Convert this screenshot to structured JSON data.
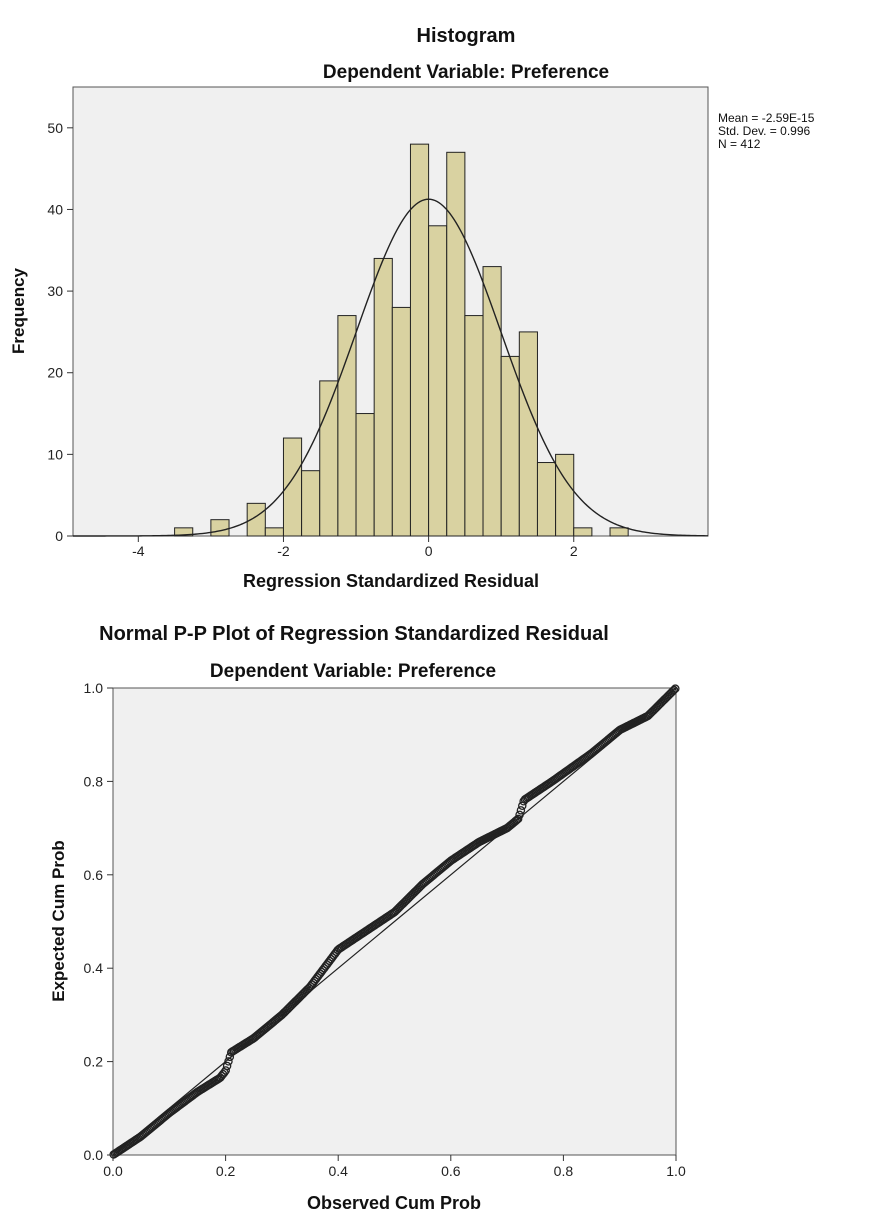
{
  "chart_data": [
    {
      "type": "bar",
      "title": "Histogram",
      "subtitle": "Dependent Variable: Preference",
      "xlabel": "Regression Standardized Residual",
      "ylabel": "Frequency",
      "xlim": [
        -4.9,
        3.85
      ],
      "ylim": [
        0,
        55
      ],
      "x_ticks": [
        -4,
        -2,
        0,
        2
      ],
      "y_ticks": [
        0,
        10,
        20,
        30,
        40,
        50
      ],
      "bin_width": 0.25,
      "bins": [
        {
          "x0": -3.5,
          "value": 1
        },
        {
          "x0": -3.0,
          "value": 2
        },
        {
          "x0": -2.5,
          "value": 4
        },
        {
          "x0": -2.25,
          "value": 1
        },
        {
          "x0": -2.0,
          "value": 12
        },
        {
          "x0": -1.75,
          "value": 8
        },
        {
          "x0": -1.5,
          "value": 19
        },
        {
          "x0": -1.25,
          "value": 27
        },
        {
          "x0": -1.0,
          "value": 15
        },
        {
          "x0": -0.75,
          "value": 34
        },
        {
          "x0": -0.5,
          "value": 28
        },
        {
          "x0": -0.25,
          "value": 48
        },
        {
          "x0": 0.0,
          "value": 38
        },
        {
          "x0": 0.25,
          "value": 47
        },
        {
          "x0": 0.5,
          "value": 27
        },
        {
          "x0": 0.75,
          "value": 33
        },
        {
          "x0": 1.0,
          "value": 22
        },
        {
          "x0": 1.25,
          "value": 25
        },
        {
          "x0": 1.5,
          "value": 9
        },
        {
          "x0": 1.75,
          "value": 10
        },
        {
          "x0": 2.0,
          "value": 1
        },
        {
          "x0": 2.5,
          "value": 1
        }
      ],
      "normal_curve": {
        "mean": 0,
        "sd": 0.996,
        "n": 412
      },
      "stats": [
        "Mean = -2.59E-15",
        "Std. Dev. = 0.996",
        "N = 412"
      ],
      "colors": {
        "bar_fill": "#d9d2a1",
        "plot_bg": "#f0f0f0",
        "stroke": "#222222"
      }
    },
    {
      "type": "scatter",
      "title": "Normal P-P Plot of Regression Standardized Residual",
      "subtitle": "Dependent Variable: Preference",
      "xlabel": "Observed Cum Prob",
      "ylabel": "Expected Cum Prob",
      "xlim": [
        0,
        1
      ],
      "ylim": [
        0,
        1
      ],
      "x_ticks": [
        "0.0",
        "0.2",
        "0.4",
        "0.6",
        "0.8",
        "1.0"
      ],
      "y_ticks": [
        "0.0",
        "0.2",
        "0.4",
        "0.6",
        "0.8",
        "1.0"
      ],
      "reference_line": [
        [
          0,
          0
        ],
        [
          1,
          1
        ]
      ],
      "n_points": 412,
      "trace": [
        [
          0.0,
          0.0
        ],
        [
          0.05,
          0.04
        ],
        [
          0.1,
          0.09
        ],
        [
          0.15,
          0.135
        ],
        [
          0.19,
          0.165
        ],
        [
          0.2,
          0.18
        ],
        [
          0.21,
          0.22
        ],
        [
          0.25,
          0.25
        ],
        [
          0.3,
          0.3
        ],
        [
          0.35,
          0.36
        ],
        [
          0.4,
          0.44
        ],
        [
          0.45,
          0.48
        ],
        [
          0.5,
          0.52
        ],
        [
          0.55,
          0.58
        ],
        [
          0.6,
          0.63
        ],
        [
          0.65,
          0.67
        ],
        [
          0.7,
          0.7
        ],
        [
          0.72,
          0.72
        ],
        [
          0.73,
          0.76
        ],
        [
          0.78,
          0.8
        ],
        [
          0.85,
          0.86
        ],
        [
          0.9,
          0.91
        ],
        [
          0.95,
          0.94
        ],
        [
          1.0,
          1.0
        ]
      ],
      "colors": {
        "plot_bg": "#f0f0f0",
        "stroke": "#222222"
      }
    }
  ]
}
